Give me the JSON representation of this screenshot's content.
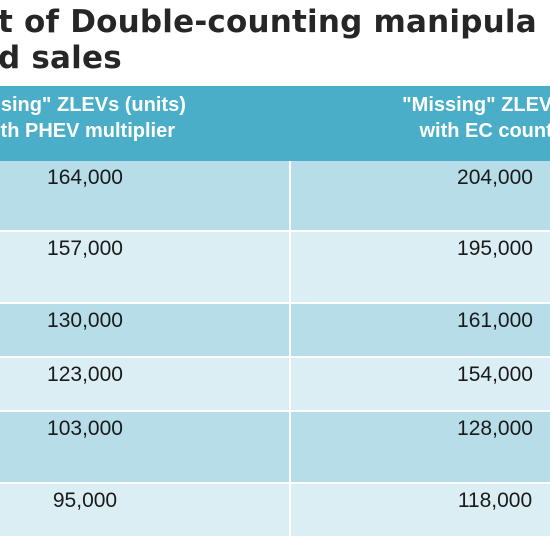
{
  "title": {
    "line1": "t of Double-counting manipula",
    "line2": "d sales"
  },
  "table": {
    "headers": [
      {
        "line1": "issing\" ZLEVs (units)",
        "line2": "ith PHEV multiplier"
      },
      {
        "line1": "\"Missing\" ZLEVs (u",
        "line2": "with EC countin"
      }
    ],
    "rows": [
      {
        "col1": "164,000",
        "col2": "204,000"
      },
      {
        "col1": "157,000",
        "col2": "195,000"
      },
      {
        "col1": "130,000",
        "col2": "161,000"
      },
      {
        "col1": "123,000",
        "col2": "154,000"
      },
      {
        "col1": "103,000",
        "col2": "128,000"
      },
      {
        "col1": "95,000",
        "col2": "118,000"
      }
    ]
  },
  "colors": {
    "header_bg": "#4aaec8",
    "row_dark": "#b6dde8",
    "row_light": "#dbeef4",
    "title_text": "#262626"
  }
}
